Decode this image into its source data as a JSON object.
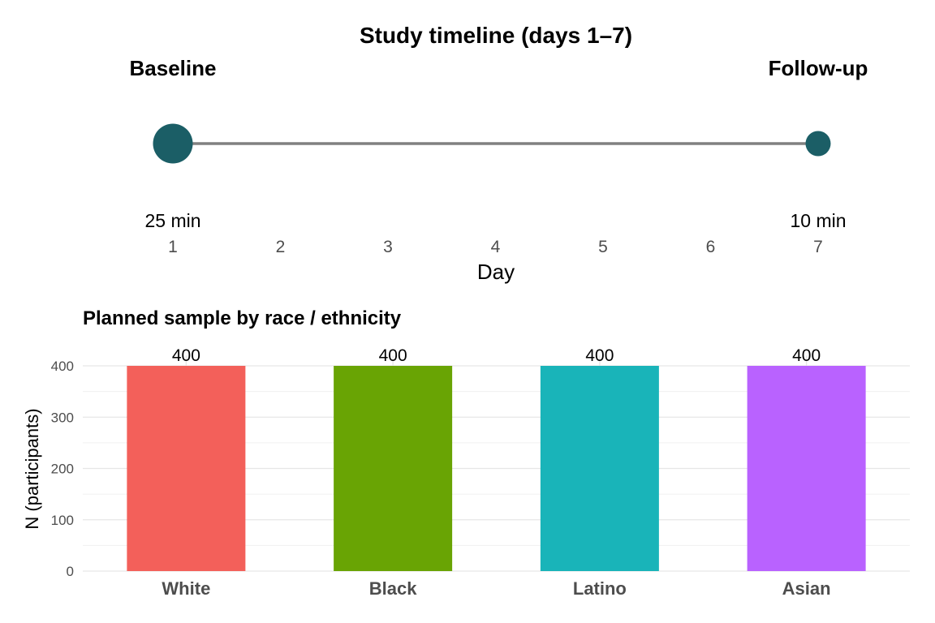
{
  "chart_data": [
    {
      "type": "scatter",
      "title": "Study timeline (days 1–7)",
      "xlabel": "Day",
      "ylabel": "",
      "x_ticks": [
        1,
        2,
        3,
        4,
        5,
        6,
        7
      ],
      "xlim": [
        1,
        7
      ],
      "grid": false,
      "points": [
        {
          "day": 1,
          "label": "Baseline",
          "duration": "25 min",
          "minutes": 25
        },
        {
          "day": 7,
          "label": "Follow-up",
          "duration": "10 min",
          "minutes": 10
        }
      ],
      "colors": {
        "point": "#1b5e66",
        "line": "#808080"
      }
    },
    {
      "type": "bar",
      "title": "Planned sample by race / ethnicity",
      "xlabel": "",
      "ylabel": "N (participants)",
      "categories": [
        "White",
        "Black",
        "Latino",
        "Asian"
      ],
      "values": [
        400,
        400,
        400,
        400
      ],
      "data_labels": [
        "400",
        "400",
        "400",
        "400"
      ],
      "ylim": [
        0,
        420
      ],
      "y_ticks": [
        0,
        100,
        200,
        300,
        400
      ],
      "grid": true,
      "colors": [
        "#f3605a",
        "#69a404",
        "#19b4b9",
        "#b962ff"
      ]
    }
  ]
}
